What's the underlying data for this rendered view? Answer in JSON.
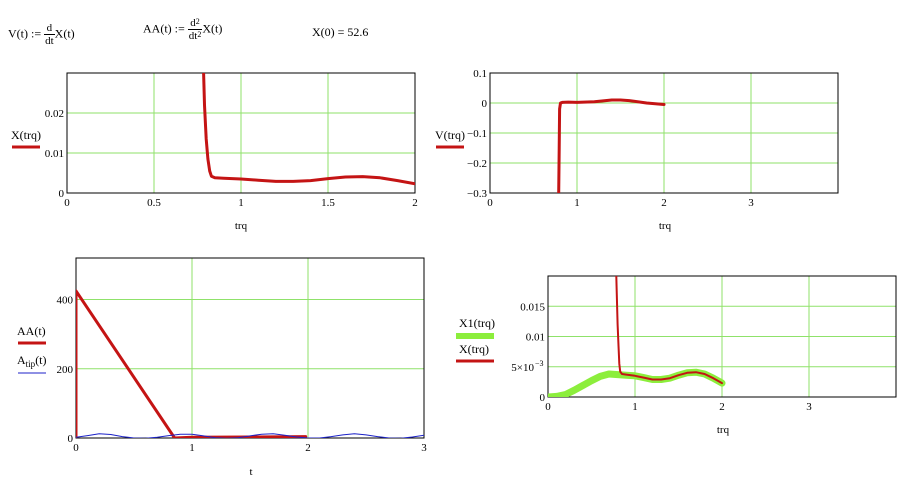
{
  "header": {
    "v_lhs": "V(t) :=",
    "v_frac_num": "d",
    "v_frac_den": "dt",
    "v_rhs": "X(t)",
    "aa_lhs": "AA(t) :=",
    "aa_frac_num": "d",
    "aa_frac_num_exp": "2",
    "aa_frac_den": "dt",
    "aa_frac_den_exp": "2",
    "aa_rhs": "X(t)",
    "x0": "X(0) = 52.6"
  },
  "colors": {
    "red": "#c41414",
    "green": "#8cee3c",
    "blue": "#1c22c8",
    "grid": "#8fe26a",
    "frame": "#000000"
  },
  "chart_data": [
    {
      "type": "line",
      "xlabel": "trq",
      "xlim": [
        0,
        2
      ],
      "ylim": [
        0,
        0.03
      ],
      "xticks": [
        0,
        0.5,
        1,
        1.5,
        2
      ],
      "xtick_labels": [
        "0",
        "0.5",
        "1",
        "1.5",
        "2"
      ],
      "yticks": [
        0,
        0.01,
        0.02
      ],
      "ytick_labels": [
        "0",
        "0.01",
        "0.02"
      ],
      "series": [
        {
          "name": "X(trq)",
          "color": "#c41414",
          "x": [
            0.785,
            0.79,
            0.8,
            0.81,
            0.82,
            0.83,
            0.85,
            0.9,
            1.0,
            1.1,
            1.2,
            1.3,
            1.4,
            1.5,
            1.6,
            1.7,
            1.8,
            1.9,
            2.0
          ],
          "y": [
            0.03,
            0.022,
            0.0135,
            0.0085,
            0.0055,
            0.0042,
            0.0038,
            0.0037,
            0.0035,
            0.0032,
            0.0029,
            0.0029,
            0.0031,
            0.0036,
            0.004,
            0.0041,
            0.0038,
            0.0031,
            0.0023
          ]
        }
      ]
    },
    {
      "type": "line",
      "xlabel": "trq",
      "xlim": [
        0,
        4
      ],
      "ylim": [
        -0.3,
        0.1
      ],
      "xticks": [
        0,
        1,
        2,
        3
      ],
      "xtick_labels": [
        "0",
        "1",
        "2",
        "3"
      ],
      "yticks": [
        -0.3,
        -0.2,
        -0.1,
        0,
        0.1
      ],
      "ytick_labels": [
        "−0.3",
        "−0.2",
        "−0.1",
        "0",
        "0.1"
      ],
      "series": [
        {
          "name": "V(trq)",
          "color": "#c41414",
          "x": [
            0.79,
            0.795,
            0.8,
            0.81,
            0.83,
            0.9,
            1.0,
            1.2,
            1.4,
            1.5,
            1.6,
            1.8,
            2.0
          ],
          "y": [
            -0.3,
            -0.15,
            -0.02,
            0.0,
            0.002,
            0.003,
            0.002,
            0.004,
            0.01,
            0.01,
            0.008,
            0.0,
            -0.005
          ]
        }
      ]
    },
    {
      "type": "line",
      "xlabel": "t",
      "xlim": [
        0,
        3
      ],
      "ylim": [
        0,
        520
      ],
      "xticks": [
        0,
        1,
        2,
        3
      ],
      "xtick_labels": [
        "0",
        "1",
        "2",
        "3"
      ],
      "yticks": [
        0,
        200,
        400
      ],
      "ytick_labels": [
        "0",
        "200",
        "400"
      ],
      "series": [
        {
          "name": "AA(t)",
          "name_parts": [
            "AA(t)"
          ],
          "color": "#c41414",
          "x": [
            0,
            0,
            0.85,
            1.0,
            1.5,
            1.98
          ],
          "y": [
            0,
            425,
            0,
            2,
            3,
            4
          ]
        },
        {
          "name": "Atip(t)",
          "name_parts": [
            "A",
            "tip",
            "(t)"
          ],
          "color": "#1c22c8",
          "x": [
            0,
            0.1,
            0.2,
            0.3,
            0.4,
            0.5,
            0.6,
            0.7,
            0.8,
            0.9,
            1.0,
            1.1,
            1.2,
            1.3,
            1.4,
            1.5,
            1.6,
            1.7,
            1.8,
            1.9,
            2.0,
            2.1,
            2.2,
            2.3,
            2.4,
            2.5,
            2.6,
            2.7,
            2.8,
            2.9,
            3.0
          ],
          "y": [
            2,
            7,
            12,
            10,
            4,
            0,
            -1,
            2,
            7,
            11,
            11,
            6,
            1,
            -1,
            1,
            6,
            11,
            12,
            8,
            3,
            0,
            0,
            4,
            9,
            12,
            9,
            4,
            0,
            -1,
            3,
            8
          ]
        }
      ]
    },
    {
      "type": "line",
      "xlabel": "trq",
      "xlim": [
        0,
        4
      ],
      "ylim": [
        0,
        0.02
      ],
      "xticks": [
        0,
        1,
        2,
        3
      ],
      "xtick_labels": [
        "0",
        "1",
        "2",
        "3"
      ],
      "yticks": [
        0,
        0.005,
        0.01,
        0.015
      ],
      "ytick_labels": [
        "0",
        "5×10",
        "0.01",
        "0.015"
      ],
      "ytick_exponent": "−3",
      "series": [
        {
          "name": "X1(trq)",
          "color": "#8cee3c",
          "x": [
            0,
            0.1,
            0.2,
            0.3,
            0.4,
            0.5,
            0.6,
            0.7,
            0.8,
            0.9,
            1.0,
            1.1,
            1.2,
            1.3,
            1.4,
            1.5,
            1.6,
            1.7,
            1.8,
            1.9,
            2.0
          ],
          "y": [
            0,
            0.0001,
            0.0004,
            0.0011,
            0.0019,
            0.0027,
            0.0034,
            0.0038,
            0.0037,
            0.0036,
            0.0035,
            0.0032,
            0.0029,
            0.0029,
            0.0031,
            0.0036,
            0.004,
            0.0041,
            0.0038,
            0.0031,
            0.0023
          ]
        },
        {
          "name": "X(trq)",
          "color": "#c41414",
          "x": [
            0.785,
            0.79,
            0.8,
            0.81,
            0.82,
            0.83,
            0.85,
            0.9,
            1.0,
            1.1,
            1.2,
            1.3,
            1.4,
            1.5,
            1.6,
            1.7,
            1.8,
            1.9,
            2.0
          ],
          "y": [
            0.02,
            0.0175,
            0.012,
            0.0085,
            0.0055,
            0.0042,
            0.0038,
            0.0037,
            0.0035,
            0.0032,
            0.0029,
            0.0029,
            0.0031,
            0.0036,
            0.004,
            0.0041,
            0.0038,
            0.0031,
            0.0023
          ]
        }
      ]
    }
  ]
}
